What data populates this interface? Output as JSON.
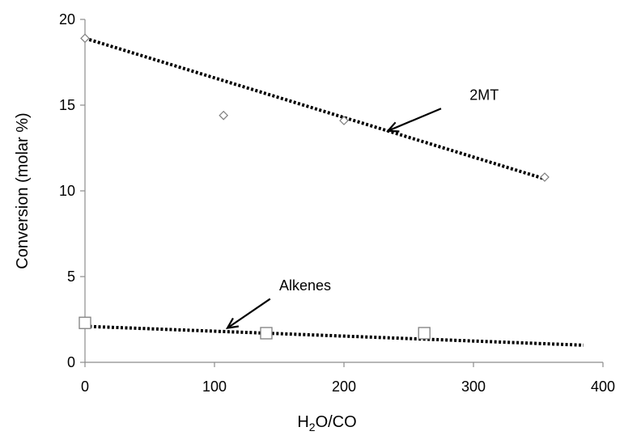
{
  "chart_data": {
    "type": "scatter",
    "title": "",
    "xlabel": {
      "main": "H",
      "sub": "2",
      "rest": "O/CO"
    },
    "ylabel": "Conversion (molar %)",
    "xlim": [
      0,
      400
    ],
    "ylim": [
      0,
      20
    ],
    "xticks": [
      "0",
      "100",
      "200",
      "300",
      "400"
    ],
    "yticks": [
      "0",
      "5",
      "10",
      "15",
      "20"
    ],
    "grid": false,
    "legend": "none",
    "series": [
      {
        "marker": "diamond",
        "color": "#7f7f7f",
        "points": [
          {
            "x": 0,
            "y": 18.9
          },
          {
            "x": 107,
            "y": 14.4
          },
          {
            "x": 200,
            "y": 14.1
          },
          {
            "x": 355,
            "y": 10.8
          }
        ],
        "trendline": {
          "x": [
            0,
            355
          ],
          "y": [
            18.9,
            10.7
          ]
        }
      },
      {
        "marker": "square",
        "color": "#7f7f7f",
        "points": [
          {
            "x": 0,
            "y": 2.3
          },
          {
            "x": 140,
            "y": 1.7
          },
          {
            "x": 262,
            "y": 1.7
          }
        ],
        "trendline": {
          "x": [
            0,
            385
          ],
          "y": [
            2.1,
            1.0
          ]
        }
      }
    ],
    "annotations": [
      {
        "text": "2MT",
        "text_at": [
          297,
          15.3
        ],
        "arrow_from": [
          275,
          14.8
        ],
        "arrow_to": [
          234,
          13.5
        ]
      },
      {
        "text": "Alkenes",
        "text_at": [
          150,
          4.2
        ],
        "arrow_from": [
          143,
          3.7
        ],
        "arrow_to": [
          110,
          2.0
        ]
      }
    ]
  }
}
